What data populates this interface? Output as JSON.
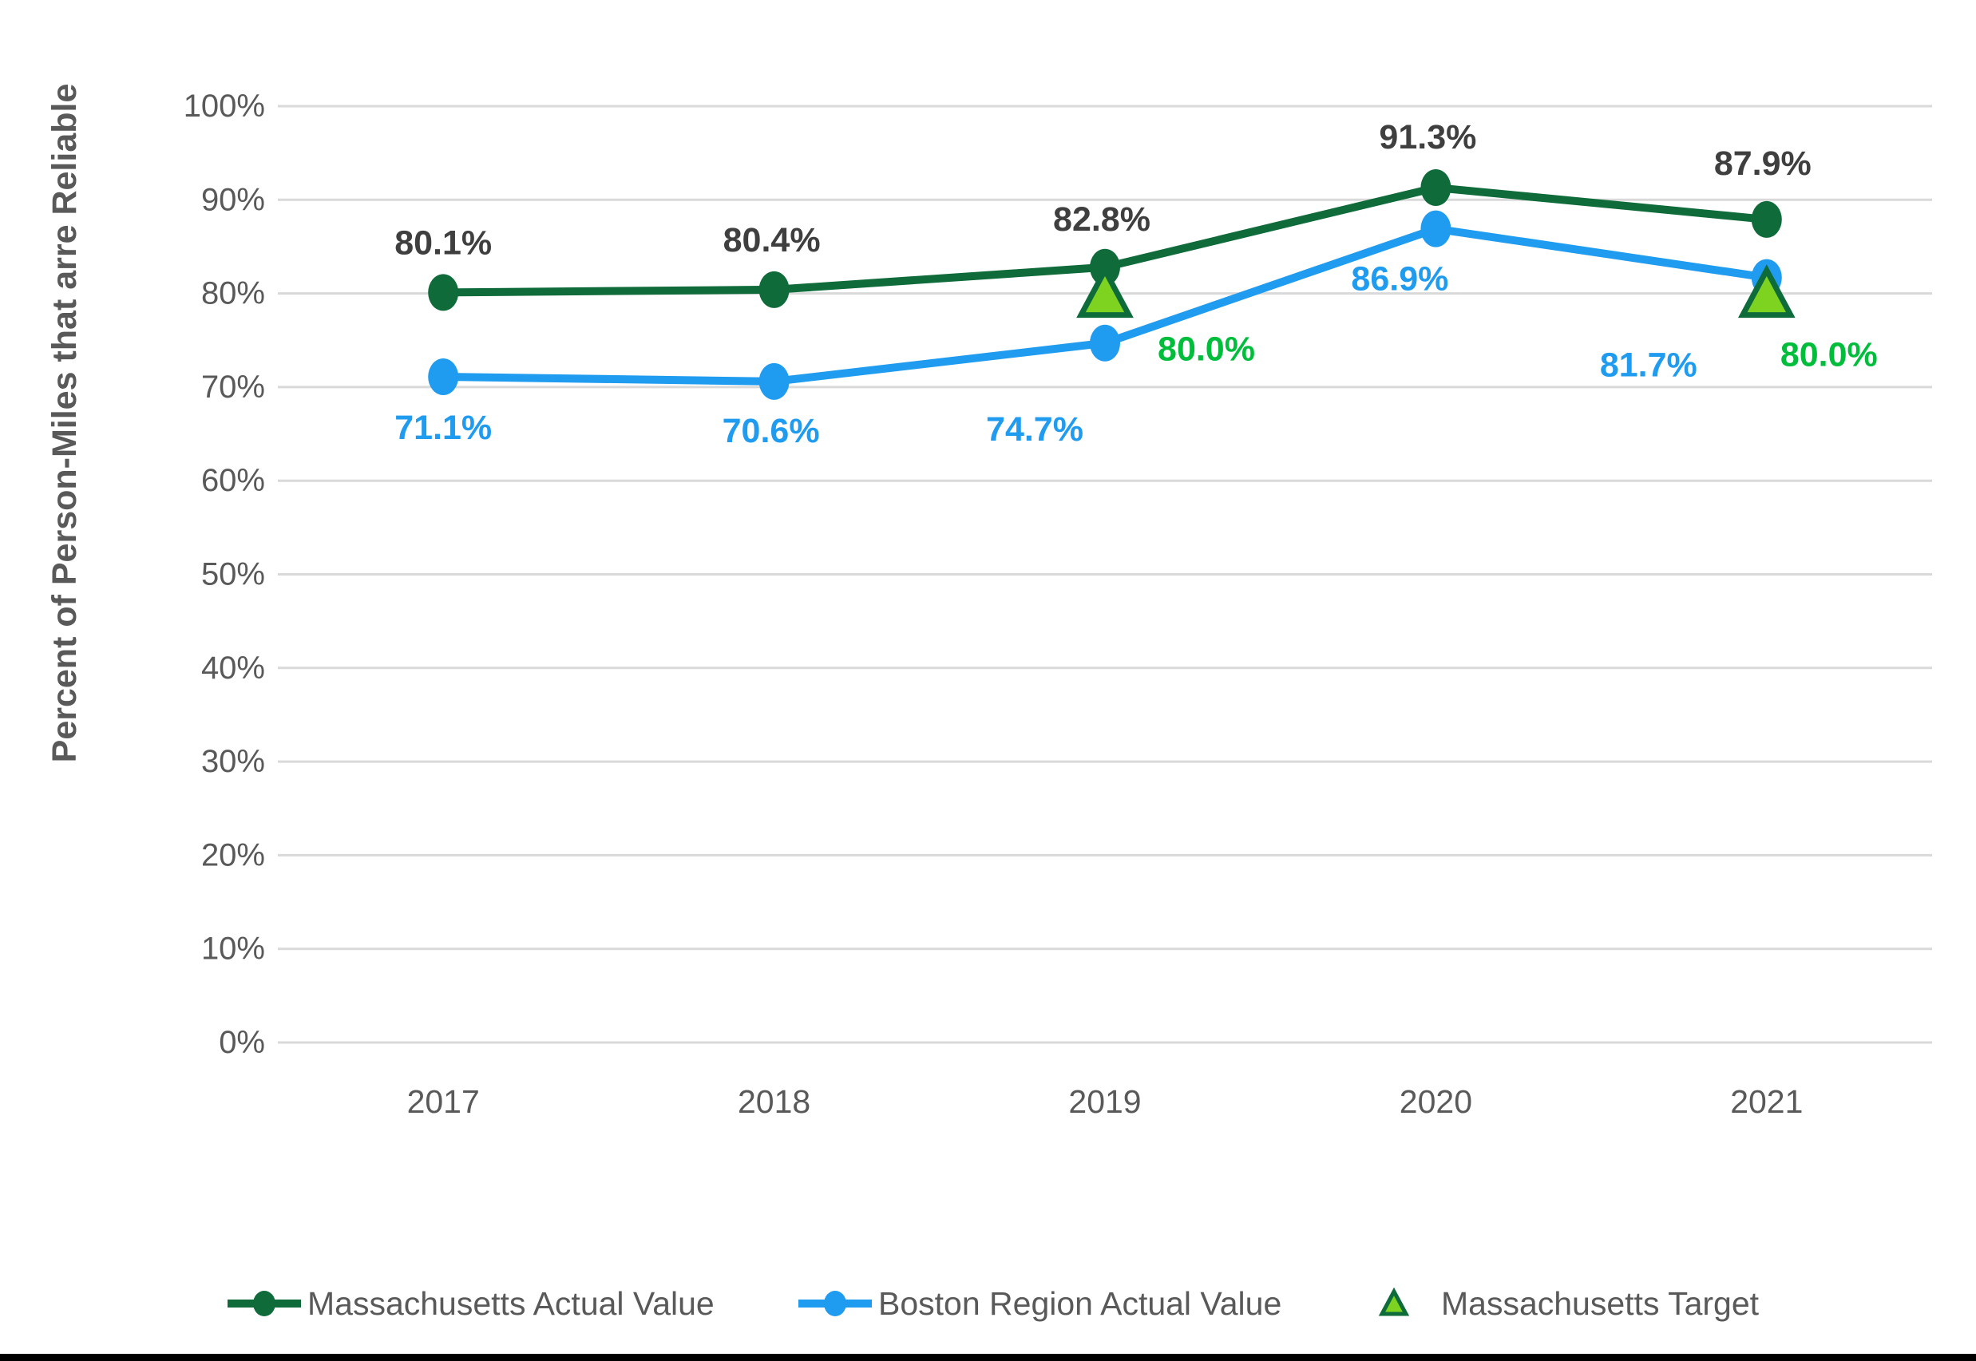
{
  "chart_data": {
    "type": "line",
    "title": "",
    "xlabel": "",
    "ylabel": "Percent of Person-Miles that arre Reliable",
    "x_categories": [
      "2017",
      "2018",
      "2019",
      "2020",
      "2021"
    ],
    "yticks": [
      "0%",
      "10%",
      "20%",
      "30%",
      "40%",
      "50%",
      "60%",
      "70%",
      "80%",
      "90%",
      "100%"
    ],
    "ylim": [
      0,
      100
    ],
    "grid": "horizontal",
    "gridline_color": "#d9d9d9",
    "axis_text_color": "#595959",
    "legend_position": "bottom",
    "series": [
      {
        "name": "Massachusetts Actual Value",
        "color": "#0f6b3a",
        "marker": "circle",
        "label_color": "#3f3f3f",
        "values": [
          80.1,
          80.4,
          82.8,
          91.3,
          87.9
        ],
        "labels": [
          {
            "text": "80.1%",
            "dx": 0,
            "dy": -62
          },
          {
            "text": "80.4%",
            "dx": -3,
            "dy": -62
          },
          {
            "text": "82.8%",
            "dx": -4,
            "dy": -60
          },
          {
            "text": "91.3%",
            "dx": -10,
            "dy": -63
          },
          {
            "text": "87.9%",
            "dx": -5,
            "dy": -70
          }
        ]
      },
      {
        "name": "Boston Region Actual Value",
        "color": "#1f9bf0",
        "marker": "circle",
        "label_color": "#1f9bf0",
        "values": [
          71.1,
          70.6,
          74.7,
          86.9,
          81.7
        ],
        "labels": [
          {
            "text": "71.1%",
            "dx": 0,
            "dy": 64
          },
          {
            "text": "70.6%",
            "dx": -4,
            "dy": 62
          },
          {
            "text": "74.7%",
            "dx": -88,
            "dy": 108
          },
          {
            "text": "86.9%",
            "dx": -45,
            "dy": 63
          },
          {
            "text": "81.7%",
            "dx": -148,
            "dy": 110
          }
        ]
      },
      {
        "name": "Massachusetts Target",
        "color": "#7ed321",
        "stroke": "#0e6b3a",
        "marker": "triangle",
        "label_color": "#00bd3c",
        "points": [
          {
            "category": "2019",
            "value": 80.0,
            "label": {
              "text": "80.0%",
              "dx": 127,
              "dy": 70
            }
          },
          {
            "category": "2021",
            "value": 80.0,
            "label": {
              "text": "80.0%",
              "dx": 78,
              "dy": 77
            }
          }
        ]
      }
    ]
  }
}
